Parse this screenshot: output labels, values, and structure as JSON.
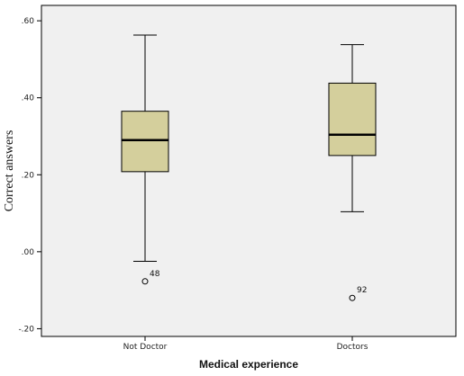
{
  "chart_data": {
    "type": "boxplot",
    "xlabel": "Medical experience",
    "ylabel": "Correct answers",
    "ylim": [
      -0.22,
      0.64
    ],
    "yticks": [
      {
        "value": 0.6,
        "label": ".60"
      },
      {
        "value": 0.4,
        "label": ".40"
      },
      {
        "value": 0.2,
        "label": ".20"
      },
      {
        "value": 0.0,
        "label": ".00"
      },
      {
        "value": -0.2,
        "label": "-.20"
      }
    ],
    "categories": [
      "Not Doctor",
      "Doctors"
    ],
    "boxes": [
      {
        "category": "Not Doctor",
        "whisker_low": -0.025,
        "q1": 0.208,
        "median": 0.29,
        "q3": 0.365,
        "whisker_high": 0.563,
        "outliers": [
          {
            "value": -0.077,
            "label": "48"
          }
        ]
      },
      {
        "category": "Doctors",
        "whisker_low": 0.104,
        "q1": 0.25,
        "median": 0.304,
        "q3": 0.438,
        "whisker_high": 0.538,
        "outliers": [
          {
            "value": -0.12,
            "label": "92"
          }
        ]
      }
    ],
    "plot_background": "#f0f0f0",
    "box_fill": "#d4cf9c",
    "grid": false
  }
}
